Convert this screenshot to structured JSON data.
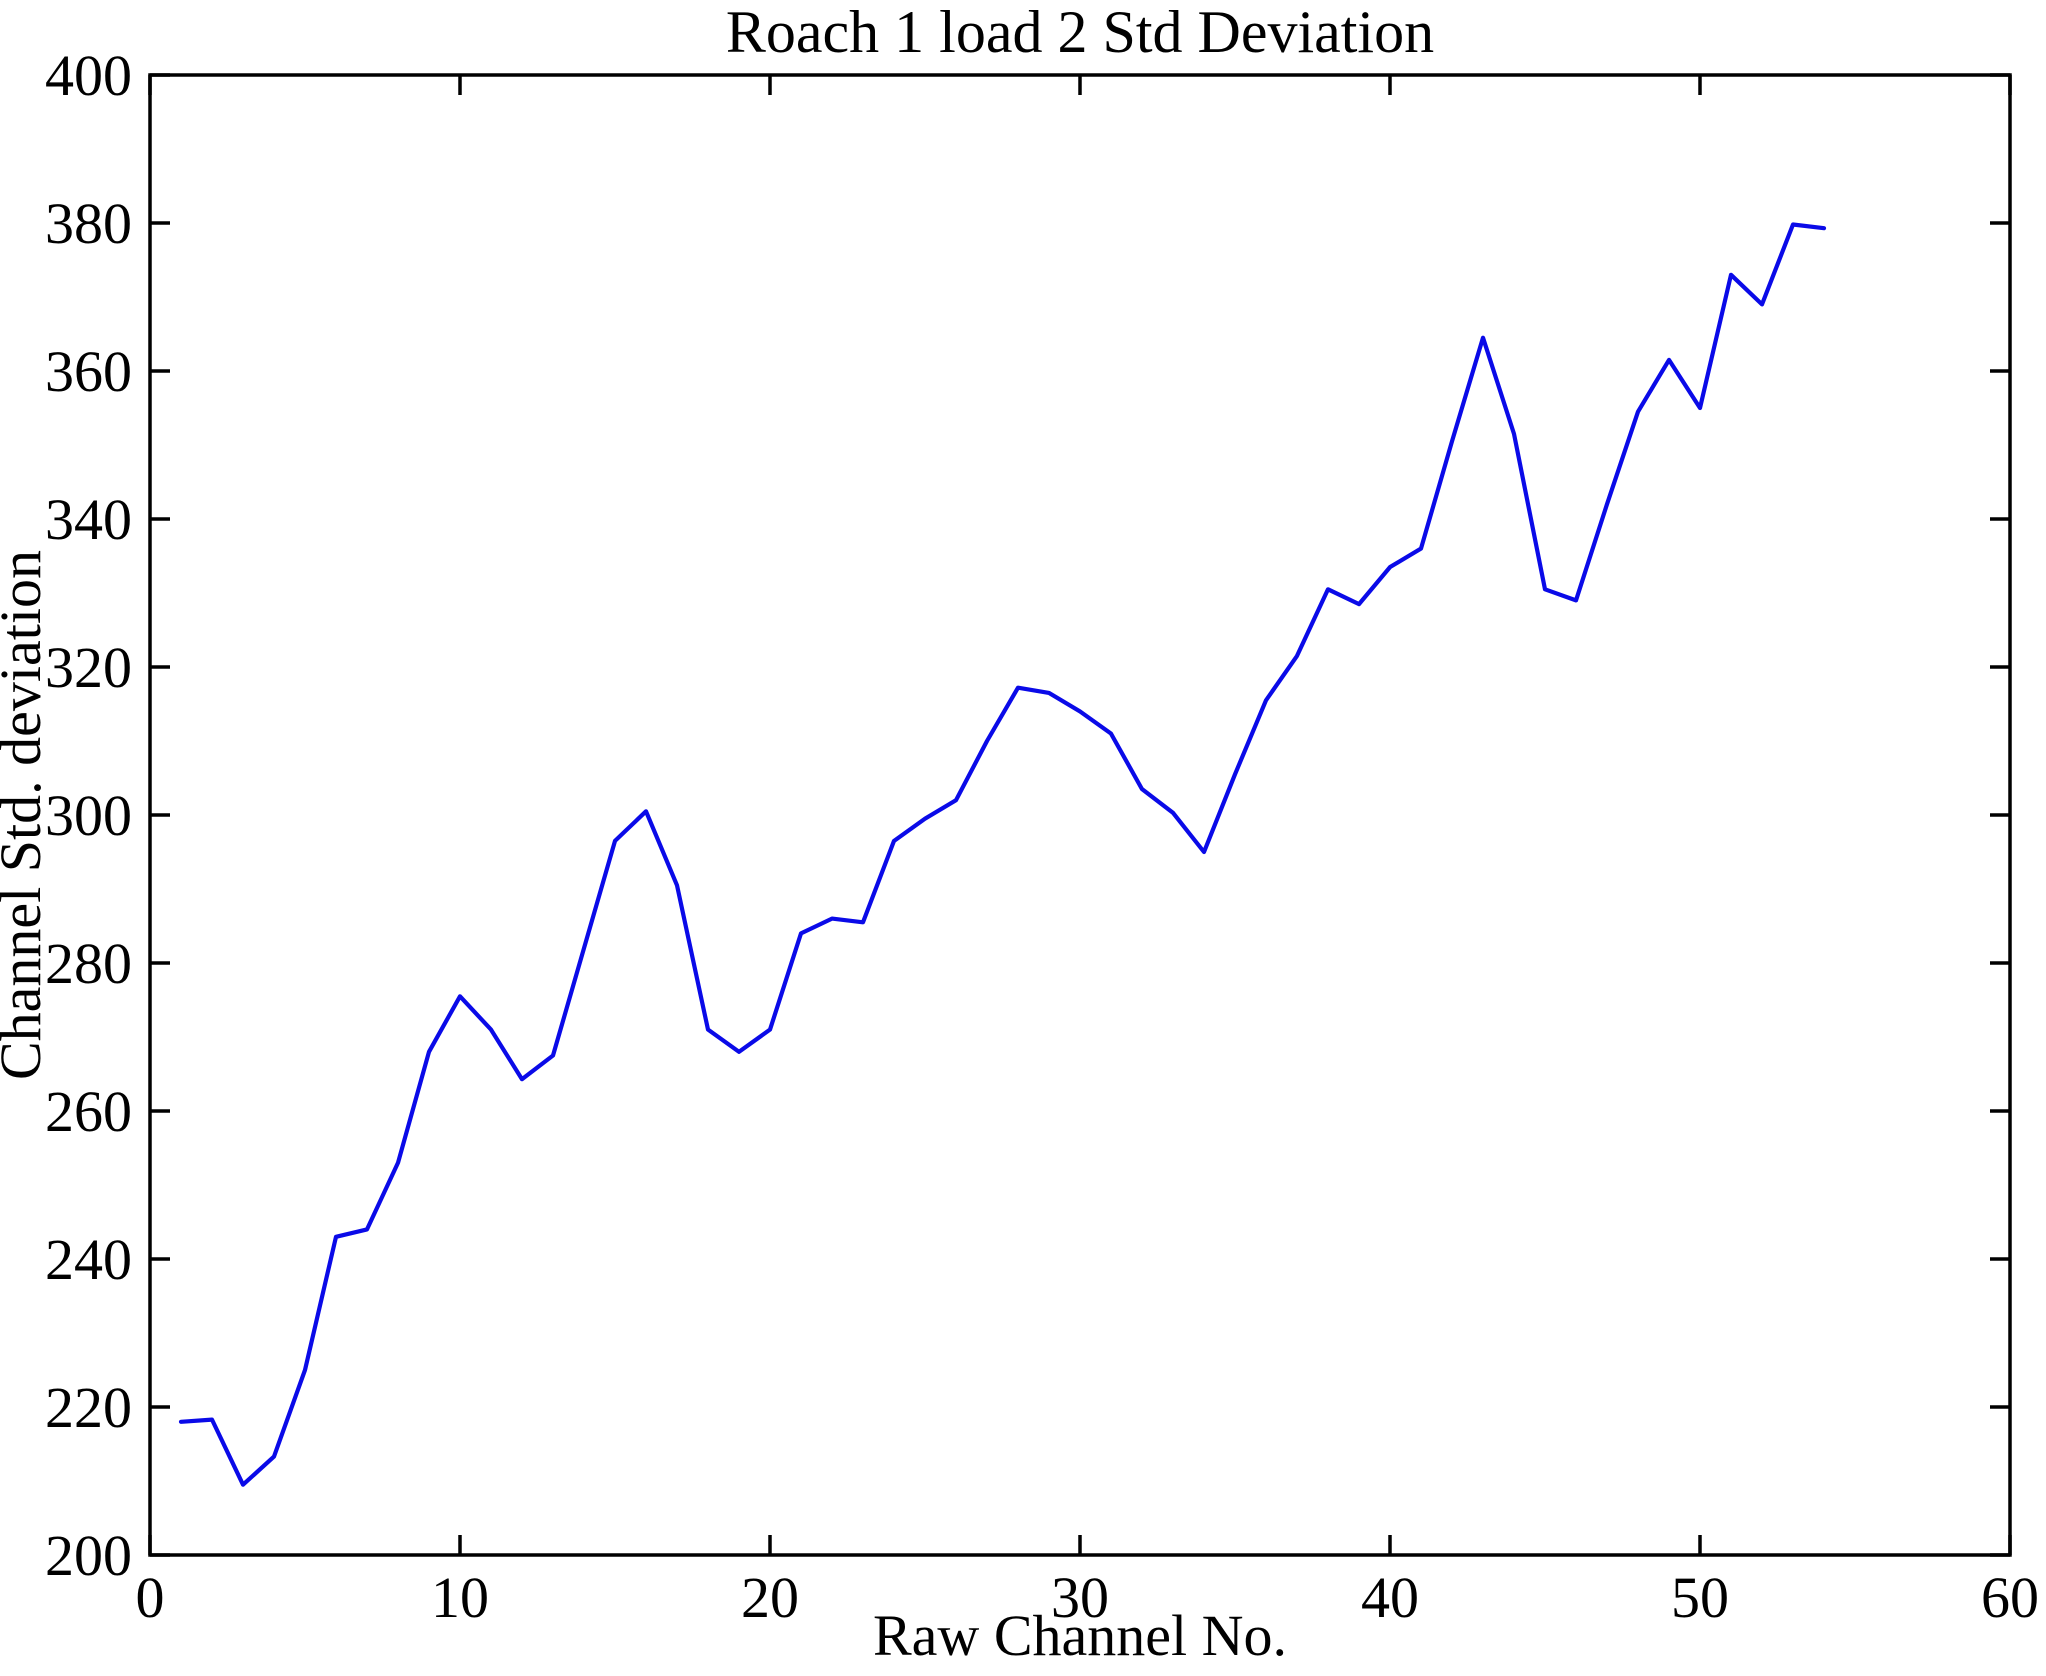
{
  "figure": {
    "background": "#ffffff",
    "axis_color": "#000000",
    "text_color": "#000000"
  },
  "chart_data": {
    "type": "line",
    "title": "Roach 1 load 2 Std Deviation",
    "xlabel": "Raw Channel No.",
    "ylabel": "Channel Std. deviation",
    "xlim": [
      0,
      60
    ],
    "ylim": [
      200,
      400
    ],
    "xticks": [
      0,
      10,
      20,
      30,
      40,
      50,
      60
    ],
    "yticks": [
      200,
      220,
      240,
      260,
      280,
      300,
      320,
      340,
      360,
      380,
      400
    ],
    "grid": false,
    "legend": null,
    "line_color": "#0a0ae8",
    "x": [
      1,
      2,
      3,
      4,
      5,
      6,
      7,
      8,
      9,
      10,
      11,
      12,
      13,
      14,
      15,
      16,
      17,
      18,
      19,
      20,
      21,
      22,
      23,
      24,
      25,
      26,
      27,
      28,
      29,
      30,
      31,
      32,
      33,
      34,
      35,
      36,
      37,
      38,
      39,
      40,
      41,
      42,
      43,
      44,
      45,
      46,
      47,
      48,
      49,
      50,
      51,
      52,
      53,
      54
    ],
    "values": [
      218,
      218.3,
      209.5,
      213.3,
      225,
      243,
      244,
      253,
      268,
      275.5,
      271,
      264.3,
      267.5,
      282,
      296.5,
      300.5,
      290.5,
      271,
      268,
      271,
      284,
      286,
      285.5,
      296.5,
      299.5,
      302,
      310,
      317.2,
      316.5,
      314,
      311,
      303.5,
      300.3,
      295,
      305.5,
      315.5,
      321.5,
      330.5,
      328.5,
      333.5,
      336,
      350.5,
      364.5,
      351.5,
      330.5,
      329,
      342,
      354.5,
      361.5,
      355,
      373,
      369,
      379.8,
      379.3
    ]
  }
}
